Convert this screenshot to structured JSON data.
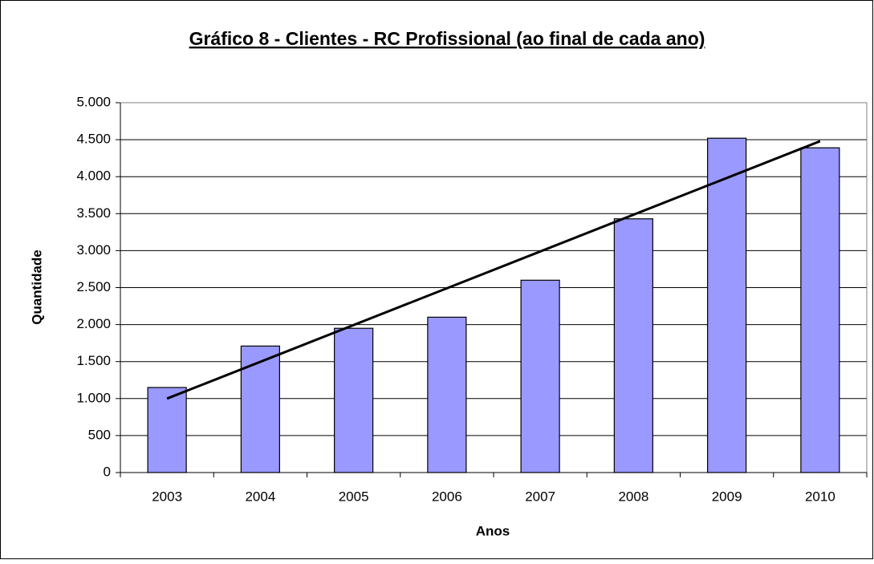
{
  "chart_data": {
    "type": "bar",
    "title": "Gráfico 8 - Clientes - RC Profissional (ao final de cada ano)",
    "x_label": "Anos",
    "y_label": "Quantidade",
    "categories": [
      "2003",
      "2004",
      "2005",
      "2006",
      "2007",
      "2008",
      "2009",
      "2010"
    ],
    "values": [
      1150,
      1710,
      1950,
      2100,
      2600,
      3430,
      4520,
      4390
    ],
    "trendline": [
      1000,
      4480
    ],
    "color": "#9999ff",
    "ylim": [
      0,
      5000
    ],
    "yticks": [
      0,
      500,
      {
        "value": 1000,
        "label": "1.000"
      },
      {
        "value": 1500,
        "label": "1.500"
      },
      {
        "value": 2000,
        "label": "2.000"
      },
      {
        "value": 2500,
        "label": "2.500"
      },
      {
        "value": 3000,
        "label": "3.000"
      },
      {
        "value": 3500,
        "label": "3.500"
      },
      {
        "value": 4000,
        "label": "4.000"
      },
      {
        "value": 4500,
        "label": "4.500"
      },
      {
        "value": 5000,
        "label": "5.000"
      }
    ],
    "grid": true
  }
}
